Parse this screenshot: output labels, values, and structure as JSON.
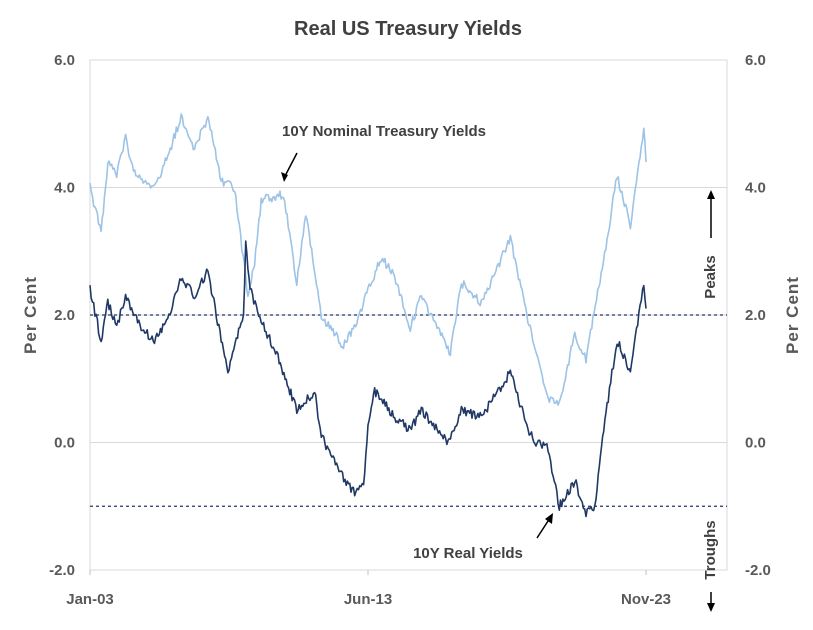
{
  "chart_data": {
    "type": "line",
    "title": "Real US Treasury Yields",
    "ylabel_left": "Per Cent",
    "ylabel_right": "Per Cent",
    "ylim": [
      -2.0,
      6.0
    ],
    "y_ticks": [
      "6.0",
      "4.0",
      "2.0",
      "0.0",
      "-2.0"
    ],
    "x_ticks": [
      "Jan-03",
      "Jun-13",
      "Nov-23"
    ],
    "x_range": [
      "2003-01",
      "2023-11"
    ],
    "grid": true,
    "reference_lines": [
      {
        "label": "Peaks",
        "y": 2.0
      },
      {
        "label": "Troughs",
        "y": -1.0
      }
    ],
    "annotations": {
      "nominal": "10Y Nominal Treasury Yields",
      "real": "10Y Real Yields"
    },
    "series": [
      {
        "name": "10Y Nominal Treasury Yields",
        "color": "#9dc3e6",
        "points": [
          [
            "2003-01",
            4.0
          ],
          [
            "2003-06",
            3.3
          ],
          [
            "2003-09",
            4.4
          ],
          [
            "2004-01",
            4.2
          ],
          [
            "2004-05",
            4.8
          ],
          [
            "2004-08",
            4.3
          ],
          [
            "2005-02",
            4.1
          ],
          [
            "2005-06",
            4.0
          ],
          [
            "2005-12",
            4.5
          ],
          [
            "2006-06",
            5.1
          ],
          [
            "2006-12",
            4.6
          ],
          [
            "2007-06",
            5.1
          ],
          [
            "2007-12",
            4.1
          ],
          [
            "2008-06",
            4.0
          ],
          [
            "2008-12",
            2.3
          ],
          [
            "2009-03",
            2.8
          ],
          [
            "2009-06",
            3.8
          ],
          [
            "2010-04",
            3.9
          ],
          [
            "2010-10",
            2.5
          ],
          [
            "2011-02",
            3.6
          ],
          [
            "2011-09",
            2.0
          ],
          [
            "2012-07",
            1.5
          ],
          [
            "2013-01",
            1.9
          ],
          [
            "2013-06",
            2.4
          ],
          [
            "2013-12",
            2.9
          ],
          [
            "2014-06",
            2.6
          ],
          [
            "2015-01",
            1.8
          ],
          [
            "2015-06",
            2.3
          ],
          [
            "2016-07",
            1.4
          ],
          [
            "2016-12",
            2.5
          ],
          [
            "2017-09",
            2.2
          ],
          [
            "2018-10",
            3.2
          ],
          [
            "2019-08",
            1.6
          ],
          [
            "2020-03",
            0.7
          ],
          [
            "2020-08",
            0.6
          ],
          [
            "2021-03",
            1.7
          ],
          [
            "2021-08",
            1.3
          ],
          [
            "2022-06",
            3.3
          ],
          [
            "2022-10",
            4.2
          ],
          [
            "2023-04",
            3.4
          ],
          [
            "2023-10",
            4.9
          ],
          [
            "2023-11",
            4.4
          ]
        ]
      },
      {
        "name": "10Y Real Yields",
        "color": "#1f3864",
        "points": [
          [
            "2003-01",
            2.4
          ],
          [
            "2003-06",
            1.6
          ],
          [
            "2003-09",
            2.2
          ],
          [
            "2004-01",
            1.8
          ],
          [
            "2004-05",
            2.3
          ],
          [
            "2004-12",
            1.8
          ],
          [
            "2005-06",
            1.6
          ],
          [
            "2006-01",
            2.0
          ],
          [
            "2006-06",
            2.6
          ],
          [
            "2006-12",
            2.3
          ],
          [
            "2007-06",
            2.7
          ],
          [
            "2007-12",
            1.6
          ],
          [
            "2008-03",
            1.1
          ],
          [
            "2008-10",
            2.0
          ],
          [
            "2008-11",
            3.1
          ],
          [
            "2009-01",
            2.4
          ],
          [
            "2009-06",
            1.9
          ],
          [
            "2010-01",
            1.4
          ],
          [
            "2010-10",
            0.5
          ],
          [
            "2011-06",
            0.8
          ],
          [
            "2011-09",
            0.1
          ],
          [
            "2012-06",
            -0.5
          ],
          [
            "2012-12",
            -0.8
          ],
          [
            "2013-04",
            -0.7
          ],
          [
            "2013-06",
            0.3
          ],
          [
            "2013-09",
            0.8
          ],
          [
            "2014-06",
            0.4
          ],
          [
            "2015-01",
            0.2
          ],
          [
            "2015-06",
            0.5
          ],
          [
            "2016-06",
            0.0
          ],
          [
            "2016-12",
            0.5
          ],
          [
            "2017-09",
            0.4
          ],
          [
            "2018-10",
            1.1
          ],
          [
            "2019-06",
            0.2
          ],
          [
            "2019-09",
            0.0
          ],
          [
            "2020-03",
            -0.1
          ],
          [
            "2020-08",
            -1.0
          ],
          [
            "2021-03",
            -0.6
          ],
          [
            "2021-08",
            -1.1
          ],
          [
            "2021-12",
            -1.0
          ],
          [
            "2022-03",
            -0.1
          ],
          [
            "2022-06",
            0.7
          ],
          [
            "2022-10",
            1.6
          ],
          [
            "2023-04",
            1.1
          ],
          [
            "2023-10",
            2.5
          ],
          [
            "2023-11",
            2.1
          ]
        ]
      }
    ]
  }
}
